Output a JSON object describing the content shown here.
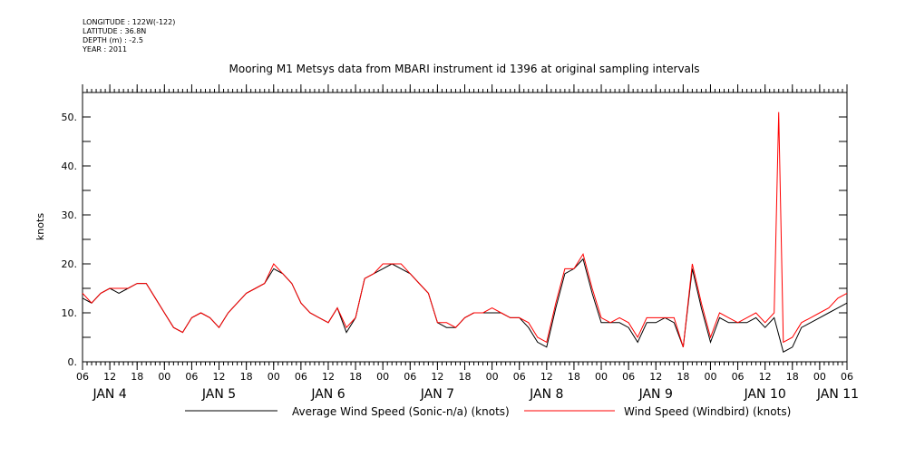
{
  "header": {
    "longitude": "LONGITUDE : 122W(-122)",
    "latitude": "LATITUDE : 36.8N",
    "depth": "DEPTH (m) : -2.5",
    "year": "YEAR : 2011"
  },
  "chart_data": {
    "type": "line",
    "title": "Mooring M1 Metsys data from MBARI instrument id 1396 at original sampling intervals",
    "ylabel": "knots",
    "xlabel": "",
    "ylim": [
      0,
      55
    ],
    "yticks": [
      "0.",
      "10.",
      "20.",
      "30.",
      "40.",
      "50."
    ],
    "ytick_values": [
      0,
      10,
      20,
      30,
      40,
      50
    ],
    "xlim_hours": [
      6,
      174
    ],
    "x_tick_labels": [
      "06",
      "12",
      "18",
      "00",
      "06",
      "12",
      "18",
      "00",
      "06",
      "12",
      "18",
      "00",
      "06",
      "12",
      "18",
      "00",
      "06",
      "12",
      "18",
      "00",
      "06",
      "12",
      "18",
      "00",
      "06",
      "12",
      "18",
      "00",
      "06"
    ],
    "day_labels": [
      "JAN  4",
      "JAN  5",
      "JAN  6",
      "JAN  7",
      "JAN  8",
      "JAN  9",
      "JAN 10",
      "JAN 11"
    ],
    "grid": false,
    "legend_position": "bottom",
    "colors": {
      "sonic": "#000000",
      "windbird": "#ff0000"
    },
    "series": [
      {
        "name": "Average Wind Speed (Sonic-n/a) (knots)",
        "color": "#000000",
        "x_hours": [
          6,
          8,
          10,
          12,
          14,
          16,
          18,
          20,
          22,
          24,
          26,
          28,
          30,
          32,
          34,
          36,
          38,
          40,
          42,
          44,
          46,
          48,
          50,
          52,
          54,
          56,
          58,
          60,
          62,
          64,
          66,
          68,
          70,
          72,
          74,
          76,
          78,
          80,
          82,
          84,
          86,
          88,
          90,
          92,
          94,
          96,
          98,
          100,
          102,
          104,
          106,
          108,
          110,
          112,
          114,
          116,
          118,
          120,
          122,
          124,
          126,
          128,
          130,
          132,
          134,
          136,
          138,
          140,
          142,
          144,
          146,
          148,
          150,
          152,
          154,
          156,
          158,
          160,
          162,
          164,
          166,
          168,
          170,
          172,
          174
        ],
        "values": [
          13,
          12,
          14,
          15,
          14,
          15,
          16,
          16,
          13,
          10,
          7,
          6,
          9,
          10,
          9,
          7,
          10,
          12,
          14,
          15,
          16,
          19,
          18,
          16,
          12,
          10,
          9,
          8,
          11,
          6,
          9,
          17,
          18,
          19,
          20,
          19,
          18,
          16,
          14,
          8,
          7,
          7,
          9,
          10,
          10,
          10,
          10,
          9,
          9,
          7,
          4,
          3,
          11,
          18,
          19,
          21,
          14,
          8,
          8,
          8,
          7,
          4,
          8,
          8,
          9,
          8,
          3,
          19,
          11,
          4,
          9,
          8,
          8,
          8,
          9,
          7,
          9,
          2,
          3,
          7,
          8,
          9,
          10,
          11,
          12
        ]
      },
      {
        "name": "Wind Speed (Windbird) (knots)",
        "color": "#ff0000",
        "x_hours": [
          6,
          8,
          10,
          12,
          14,
          16,
          18,
          20,
          22,
          24,
          26,
          28,
          30,
          32,
          34,
          36,
          38,
          40,
          42,
          44,
          46,
          48,
          50,
          52,
          54,
          56,
          58,
          60,
          62,
          64,
          66,
          68,
          70,
          72,
          74,
          76,
          78,
          80,
          82,
          84,
          86,
          88,
          90,
          92,
          94,
          96,
          98,
          100,
          102,
          104,
          106,
          108,
          110,
          112,
          114,
          116,
          118,
          120,
          122,
          124,
          126,
          128,
          130,
          132,
          134,
          136,
          138,
          140,
          142,
          144,
          146,
          148,
          150,
          152,
          154,
          156,
          158,
          159,
          160,
          162,
          164,
          166,
          168,
          170,
          172,
          174
        ],
        "values": [
          14,
          12,
          14,
          15,
          15,
          15,
          16,
          16,
          13,
          10,
          7,
          6,
          9,
          10,
          9,
          7,
          10,
          12,
          14,
          15,
          16,
          20,
          18,
          16,
          12,
          10,
          9,
          8,
          11,
          7,
          9,
          17,
          18,
          20,
          20,
          20,
          18,
          16,
          14,
          8,
          8,
          7,
          9,
          10,
          10,
          11,
          10,
          9,
          9,
          8,
          5,
          4,
          12,
          19,
          19,
          22,
          15,
          9,
          8,
          9,
          8,
          5,
          9,
          9,
          9,
          9,
          3,
          20,
          12,
          5,
          10,
          9,
          8,
          9,
          10,
          8,
          10,
          51,
          4,
          5,
          8,
          9,
          10,
          11,
          13,
          14
        ]
      }
    ]
  },
  "legend": {
    "sonic_label": "Average Wind Speed (Sonic-n/a) (knots)",
    "windbird_label": "Wind Speed (Windbird) (knots)"
  }
}
